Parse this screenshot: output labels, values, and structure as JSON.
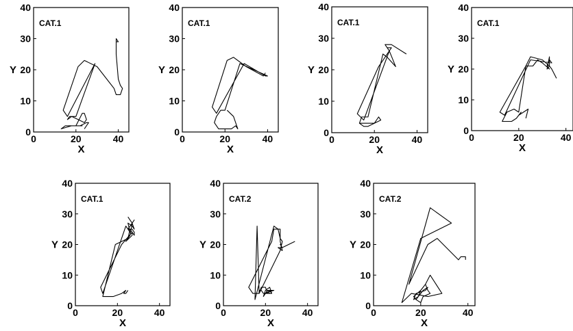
{
  "chart_data": [
    {
      "type": "line",
      "title": "CAT.1",
      "xlabel": "X",
      "ylabel": "Y",
      "xlim": [
        0,
        45
      ],
      "ylim": [
        0,
        40
      ],
      "xticks": [
        0,
        20,
        40
      ],
      "yticks": [
        0,
        10,
        20,
        30,
        40
      ],
      "grid": false,
      "series": [
        {
          "x": [
            39,
            40,
            39,
            39,
            40,
            41,
            42,
            41,
            39,
            38,
            30,
            24,
            21,
            14,
            16,
            29,
            20,
            17,
            16,
            18,
            21,
            24,
            25,
            24,
            23,
            20,
            15,
            13,
            18,
            23,
            22,
            25,
            26,
            24
          ],
          "y": [
            29,
            29,
            30,
            25,
            17,
            15,
            14,
            12,
            12,
            14,
            21,
            23,
            21,
            7,
            5,
            22,
            5,
            5,
            4,
            5,
            4,
            3,
            4,
            6,
            6,
            2,
            2,
            1,
            2,
            2,
            2,
            3,
            3,
            1
          ]
        }
      ]
    },
    {
      "type": "line",
      "title": "CAT.1",
      "xlabel": "X",
      "ylabel": "Y",
      "xlim": [
        0,
        45
      ],
      "ylim": [
        0,
        40
      ],
      "xticks": [
        0,
        20,
        40
      ],
      "yticks": [
        0,
        10,
        20,
        30,
        40
      ],
      "grid": false,
      "series": [
        {
          "x": [
            39,
            38,
            30,
            24,
            21,
            14,
            16,
            29,
            39,
            40,
            27,
            20,
            18,
            16,
            15,
            17,
            20,
            23,
            25,
            26,
            24,
            21
          ],
          "y": [
            19,
            18,
            21,
            24,
            23,
            8,
            6,
            22,
            18,
            18,
            22,
            7,
            7,
            5,
            3,
            1,
            1,
            1,
            2,
            1,
            5,
            7
          ]
        }
      ]
    },
    {
      "type": "line",
      "title": "CAT.1",
      "xlabel": "X",
      "ylabel": "Y",
      "xlim": [
        0,
        45
      ],
      "ylim": [
        0,
        40
      ],
      "xticks": [
        0,
        20,
        40
      ],
      "yticks": [
        0,
        10,
        20,
        30,
        40
      ],
      "grid": false,
      "series": [
        {
          "x": [
            35,
            28,
            25,
            27,
            26,
            28,
            24,
            22,
            12,
            15,
            27,
            30,
            26,
            24,
            17,
            14,
            13,
            16,
            20,
            23,
            22,
            20,
            17,
            15,
            13
          ],
          "y": [
            25,
            28,
            28,
            26,
            27,
            27,
            23,
            21,
            6,
            4,
            26,
            21,
            24,
            25,
            5,
            5,
            3,
            3,
            3,
            4,
            5,
            3,
            2,
            2,
            3
          ]
        }
      ]
    },
    {
      "type": "line",
      "title": "CAT.1",
      "xlabel": "X",
      "ylabel": "Y",
      "xlim": [
        0,
        43
      ],
      "ylim": [
        0,
        40
      ],
      "xticks": [
        0,
        20,
        40
      ],
      "yticks": [
        0,
        10,
        20,
        30,
        40
      ],
      "grid": false,
      "series": [
        {
          "x": [
            36,
            34,
            33,
            33,
            32,
            33,
            30,
            25,
            23,
            12,
            14,
            25,
            34,
            33,
            32,
            33,
            30,
            28,
            26,
            23,
            20,
            18,
            15,
            13,
            17,
            19,
            21,
            20,
            22,
            24,
            23
          ],
          "y": [
            17,
            20,
            21,
            24,
            20,
            21,
            23,
            24,
            21,
            6,
            5,
            23,
            22,
            23,
            21,
            20,
            22,
            23,
            21,
            21,
            6,
            7,
            6,
            3,
            3,
            4,
            6,
            5,
            6,
            7,
            4
          ]
        }
      ]
    },
    {
      "type": "line",
      "title": "CAT.1",
      "xlabel": "X",
      "ylabel": "Y",
      "xlim": [
        0,
        45
      ],
      "ylim": [
        0,
        40
      ],
      "xticks": [
        0,
        20,
        40
      ],
      "yticks": [
        0,
        10,
        20,
        30,
        40
      ],
      "grid": false,
      "series": [
        {
          "x": [
            25,
            26,
            27,
            28,
            25,
            27,
            28,
            28,
            26,
            25,
            25,
            24,
            27,
            27,
            22,
            12,
            13,
            24,
            26,
            25,
            27,
            28,
            27,
            26,
            25,
            19,
            13,
            18,
            22,
            24,
            23,
            24,
            25
          ],
          "y": [
            29,
            28,
            27,
            28,
            25,
            25,
            24,
            23,
            25,
            22,
            22,
            21,
            23,
            24,
            20,
            6,
            4,
            26,
            24,
            27,
            26,
            25,
            27,
            23,
            22,
            20,
            3,
            3,
            4,
            5,
            4,
            4,
            5
          ]
        }
      ]
    },
    {
      "type": "line",
      "title": "CAT.2",
      "xlabel": "X",
      "ylabel": "Y",
      "xlim": [
        0,
        45
      ],
      "ylim": [
        0,
        40
      ],
      "xticks": [
        0,
        20,
        40
      ],
      "yticks": [
        0,
        10,
        20,
        30,
        40
      ],
      "grid": false,
      "series": [
        {
          "x": [
            34,
            28,
            27,
            28,
            26,
            28,
            27,
            27,
            24,
            23,
            12,
            14,
            17,
            16,
            15,
            24,
            26,
            27,
            28,
            27,
            17,
            18,
            20,
            21,
            22,
            23,
            22,
            21,
            20,
            19,
            20,
            22,
            23,
            20,
            21,
            24,
            19,
            18,
            17
          ],
          "y": [
            21,
            19,
            20,
            19,
            19,
            18,
            21,
            25,
            25,
            21,
            6,
            4,
            4,
            26,
            2,
            26,
            25,
            22,
            21,
            18,
            4,
            6,
            6,
            4,
            5,
            4,
            4,
            5,
            4,
            3,
            5,
            6,
            4,
            4,
            5,
            5,
            4,
            5,
            5
          ]
        }
      ]
    },
    {
      "type": "line",
      "title": "CAT.2",
      "xlabel": "X",
      "ylabel": "Y",
      "xlim": [
        0,
        43
      ],
      "ylim": [
        0,
        40
      ],
      "xticks": [
        0,
        20,
        40
      ],
      "yticks": [
        0,
        10,
        20,
        30,
        40
      ],
      "grid": false,
      "series": [
        {
          "x": [
            39,
            39,
            37,
            36,
            27,
            23,
            15,
            24,
            33,
            20,
            12,
            16,
            23,
            29,
            24,
            22,
            21,
            20,
            19,
            17,
            18,
            22,
            23,
            21,
            20,
            18,
            17,
            20,
            21,
            22,
            23,
            24,
            21,
            20,
            18
          ],
          "y": [
            15,
            16,
            16,
            15,
            22,
            20,
            7,
            32,
            27,
            22,
            1,
            4,
            3,
            4,
            10,
            7,
            6,
            5,
            3,
            2,
            4,
            5,
            6,
            5,
            4,
            2,
            3,
            5,
            6,
            7,
            5,
            4,
            3,
            1,
            2
          ]
        }
      ]
    }
  ]
}
